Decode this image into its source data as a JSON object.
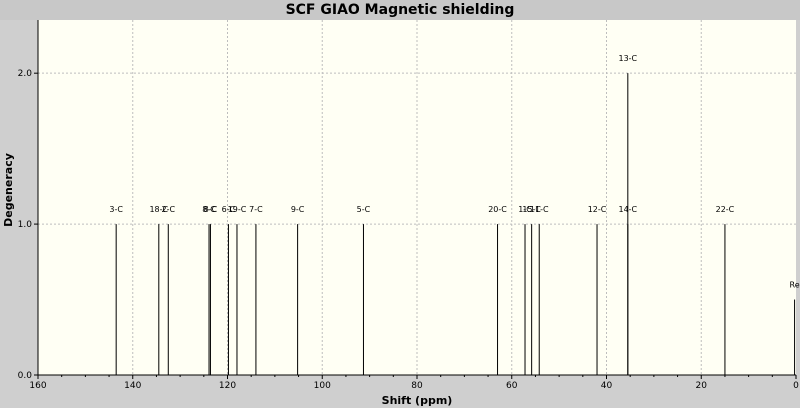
{
  "window": {
    "title": "SCF GIAO Magnetic shielding"
  },
  "chart_data": {
    "type": "bar",
    "title": "SCF GIAO Magnetic shielding",
    "xlabel": "Shift (ppm)",
    "ylabel": "Degeneracy",
    "xlim": [
      160,
      0
    ],
    "ylim": [
      0,
      2.2
    ],
    "x_ticks": [
      160,
      140,
      120,
      100,
      80,
      60,
      40,
      20,
      0
    ],
    "y_ticks": [
      0.0,
      1.0,
      2.0
    ],
    "y_tick_labels": [
      "0.0",
      "1.0",
      "2.0"
    ],
    "grid": true,
    "x_reversed": true,
    "peaks": [
      {
        "label": "3-C",
        "x": 143.5,
        "y": 1.0
      },
      {
        "label": "18-C",
        "x": 134.5,
        "y": 1.0
      },
      {
        "label": "2-C",
        "x": 132.5,
        "y": 1.0
      },
      {
        "label": "8-C",
        "x": 123.9,
        "y": 1.0
      },
      {
        "label": "8-C",
        "x": 123.6,
        "y": 1.0
      },
      {
        "label": "6-C",
        "x": 119.8,
        "y": 1.0
      },
      {
        "label": "19-C",
        "x": 118.0,
        "y": 1.0
      },
      {
        "label": "7-C",
        "x": 114.0,
        "y": 1.0
      },
      {
        "label": "9-C",
        "x": 105.2,
        "y": 1.0
      },
      {
        "label": "5-C",
        "x": 91.3,
        "y": 1.0
      },
      {
        "label": "20-C",
        "x": 63.0,
        "y": 1.0
      },
      {
        "label": "1-C",
        "x": 57.2,
        "y": 1.0
      },
      {
        "label": "15-C",
        "x": 55.8,
        "y": 1.0
      },
      {
        "label": "11-C",
        "x": 54.2,
        "y": 1.0
      },
      {
        "label": "12-C",
        "x": 42.0,
        "y": 1.0
      },
      {
        "label": "13-C",
        "x": 35.5,
        "y": 2.0
      },
      {
        "label": "14-C",
        "x": 35.5,
        "y": 1.0
      },
      {
        "label": "22-C",
        "x": 15.0,
        "y": 1.0
      },
      {
        "label": "Re",
        "x": 0.3,
        "y": 0.5
      }
    ]
  }
}
